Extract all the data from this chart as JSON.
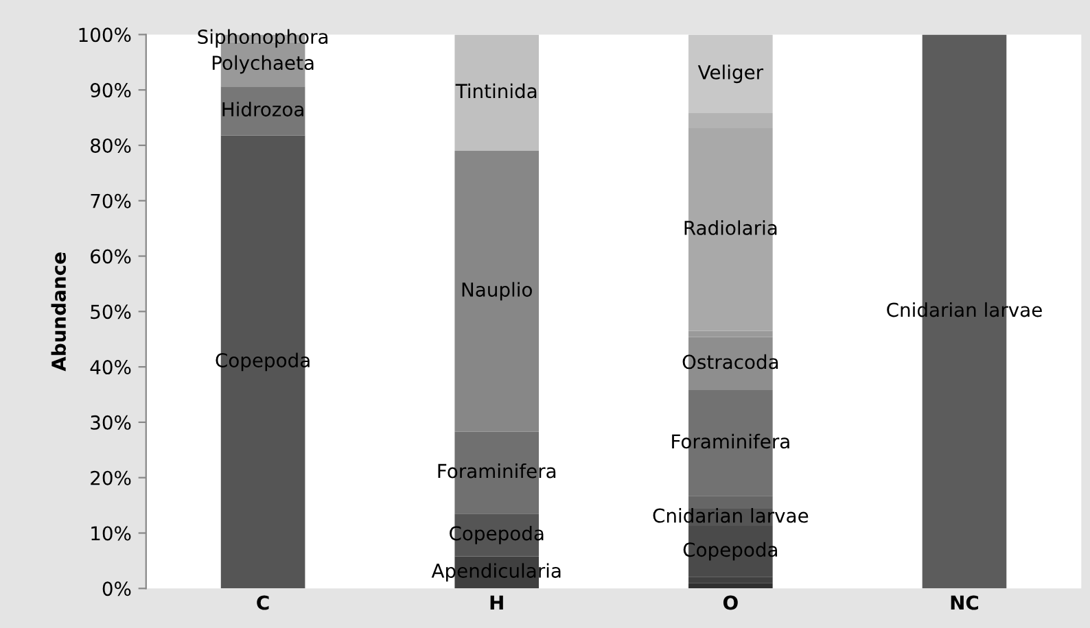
{
  "chart_data": {
    "type": "bar",
    "stacked": true,
    "ylabel": "Abundance",
    "categories": [
      "C",
      "H",
      "O",
      "NC"
    ],
    "ylim": [
      0,
      100
    ],
    "yticks": [
      {
        "value": 0,
        "label": "0%"
      },
      {
        "value": 10,
        "label": "10%"
      },
      {
        "value": 20,
        "label": "20%"
      },
      {
        "value": 30,
        "label": "30%"
      },
      {
        "value": 40,
        "label": "40%"
      },
      {
        "value": 50,
        "label": "50%"
      },
      {
        "value": 60,
        "label": "60%"
      },
      {
        "value": 70,
        "label": "70%"
      },
      {
        "value": 80,
        "label": "80%"
      },
      {
        "value": 90,
        "label": "90%"
      },
      {
        "value": 100,
        "label": "100%"
      }
    ],
    "grid": false,
    "series": [
      {
        "values": [
          81.8,
          5.8,
          1.0,
          100
        ],
        "colors": [
          "#555555",
          "#404040",
          "#303030",
          "#5c5c5c"
        ],
        "value_labels": [
          "Copepoda",
          "Apendicularia",
          null,
          "Cnidarian larvae"
        ]
      },
      {
        "values": [
          8.8,
          7.7,
          1.1,
          null
        ],
        "colors": [
          "#777777",
          "#555555",
          "#404040",
          null
        ],
        "value_labels": [
          "Hidrozoa",
          "Copepoda",
          null,
          null
        ]
      },
      {
        "values": [
          8.0,
          14.8,
          9.2,
          null
        ],
        "colors": [
          "#999999",
          "#707070",
          "#4a4a4a",
          null
        ],
        "value_labels": [
          "Polychaeta",
          "Foraminifera",
          "Copepoda",
          null
        ]
      },
      {
        "values": [
          1.4,
          50.7,
          3.1,
          null
        ],
        "colors": [
          "#aaaaaa",
          "#878787",
          "#555555",
          null
        ],
        "value_labels": [
          "Siphonophora",
          "Nauplio",
          "Cnidarian larvae",
          null
        ]
      },
      {
        "values": [
          null,
          21.0,
          2.3,
          null
        ],
        "colors": [
          null,
          "#c0c0c0",
          "#666666",
          null
        ],
        "value_labels": [
          null,
          "Tintinida",
          null,
          null
        ]
      },
      {
        "values": [
          null,
          null,
          19.1,
          null
        ],
        "colors": [
          null,
          null,
          "#727272",
          null
        ],
        "value_labels": [
          null,
          null,
          "Foraminifera",
          null
        ]
      },
      {
        "values": [
          null,
          null,
          9.6,
          null
        ],
        "colors": [
          null,
          null,
          "#8e8e8e",
          null
        ],
        "value_labels": [
          null,
          null,
          "Ostracoda",
          null
        ]
      },
      {
        "values": [
          null,
          null,
          1.1,
          null
        ],
        "colors": [
          null,
          null,
          "#9a9a9a",
          null
        ],
        "value_labels": [
          null,
          null,
          null,
          null
        ]
      },
      {
        "values": [
          null,
          null,
          36.6,
          null
        ],
        "colors": [
          null,
          null,
          "#a9a9a9",
          null
        ],
        "value_labels": [
          null,
          null,
          "Radiolaria",
          null
        ]
      },
      {
        "values": [
          null,
          null,
          2.7,
          null
        ],
        "colors": [
          null,
          null,
          "#b3b3b3",
          null
        ],
        "value_labels": [
          null,
          null,
          null,
          null
        ]
      },
      {
        "values": [
          null,
          null,
          14.2,
          null
        ],
        "colors": [
          null,
          null,
          "#c8c8c8",
          null
        ],
        "value_labels": [
          null,
          null,
          "Veliger",
          null
        ]
      }
    ]
  }
}
